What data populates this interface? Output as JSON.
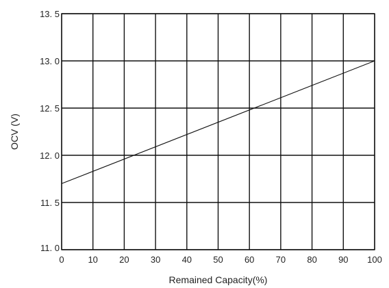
{
  "chart_data": {
    "type": "line",
    "title": "",
    "xlabel": "Remained Capacity(%)",
    "ylabel": "OCV (V)",
    "xlim": [
      0,
      100
    ],
    "ylim": [
      11.0,
      13.5
    ],
    "grid": true,
    "x_ticks": [
      0,
      10,
      20,
      30,
      40,
      50,
      60,
      70,
      80,
      90,
      100
    ],
    "x_tick_labels": [
      "0",
      "10",
      "20",
      "30",
      "40",
      "50",
      "60",
      "70",
      "80",
      "90",
      "100"
    ],
    "y_ticks": [
      11.0,
      11.5,
      12.0,
      12.5,
      13.0,
      13.5
    ],
    "y_tick_labels": [
      "11. 0",
      "11. 5",
      "12. 0",
      "12. 5",
      "13. 0",
      "13. 5"
    ],
    "series": [
      {
        "x": [
          0,
          100
        ],
        "y": [
          11.7,
          13.0
        ],
        "color": "#111111"
      }
    ]
  }
}
